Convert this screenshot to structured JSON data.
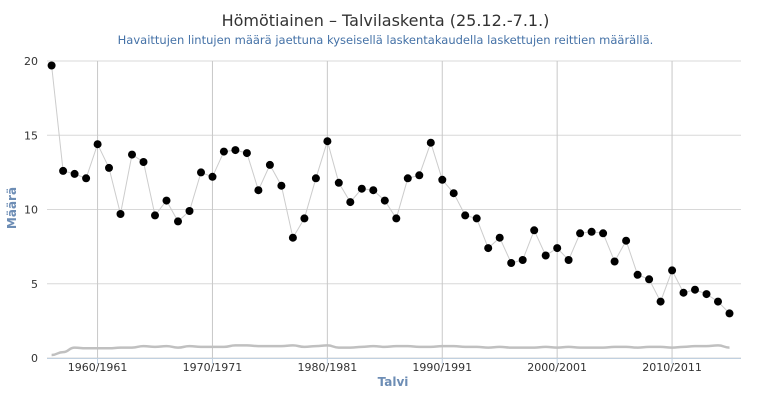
{
  "chart_data": {
    "type": "line",
    "title": "Hömötiainen – Talvilaskenta (25.12.-7.1.)",
    "subtitle": "Havaittujen lintujen määrä jaettuna kyseisellä laskentakaudella laskettujen reittien määrällä.",
    "xlabel": "Talvi",
    "ylabel": "Määrä",
    "ylim": [
      0,
      20
    ],
    "xlim": [
      1955.6,
      2016.0
    ],
    "y_ticks": [
      "0",
      "5",
      "10",
      "15",
      "20"
    ],
    "x_ticks": [
      {
        "x": 1960,
        "label": "1960/1961"
      },
      {
        "x": 1970,
        "label": "1970/1971"
      },
      {
        "x": 1980,
        "label": "1980/1981"
      },
      {
        "x": 1990,
        "label": "1990/1991"
      },
      {
        "x": 2000,
        "label": "2000/2001"
      },
      {
        "x": 2010,
        "label": "2010/2011"
      }
    ],
    "grid": true,
    "series": [
      {
        "name": "",
        "color": "#000000",
        "line_color": "#cccccc",
        "x": [
          1956,
          1957,
          1958,
          1959,
          1960,
          1961,
          1962,
          1963,
          1964,
          1965,
          1966,
          1967,
          1968,
          1969,
          1970,
          1971,
          1972,
          1973,
          1974,
          1975,
          1976,
          1977,
          1978,
          1979,
          1980,
          1981,
          1982,
          1983,
          1984,
          1985,
          1986,
          1987,
          1988,
          1989,
          1990,
          1991,
          1992,
          1993,
          1994,
          1995,
          1996,
          1997,
          1998,
          1999,
          2000,
          2001,
          2002,
          2003,
          2004,
          2005,
          2006,
          2007,
          2008,
          2009,
          2010,
          2011,
          2012,
          2013,
          2014,
          2015
        ],
        "values": [
          19.7,
          12.6,
          12.4,
          12.1,
          14.4,
          12.8,
          9.7,
          13.7,
          13.2,
          9.6,
          10.6,
          9.2,
          9.9,
          12.5,
          12.2,
          13.9,
          14.0,
          13.8,
          11.3,
          13.0,
          11.6,
          8.1,
          9.4,
          12.1,
          14.6,
          11.8,
          10.5,
          11.4,
          11.3,
          10.6,
          9.4,
          12.1,
          12.3,
          14.5,
          12.0,
          11.1,
          9.6,
          9.4,
          7.4,
          8.1,
          6.4,
          6.6,
          8.6,
          6.9,
          7.4,
          6.6,
          8.4,
          8.5,
          8.4,
          6.5,
          7.9,
          5.6,
          5.3,
          3.8,
          5.9,
          4.4,
          4.6,
          4.3,
          3.8,
          3.0
        ]
      },
      {
        "name": "",
        "color": "#c0c0c0",
        "x": [
          1956,
          1957,
          1958,
          1959,
          1960,
          1961,
          1962,
          1963,
          1964,
          1965,
          1966,
          1967,
          1968,
          1969,
          1970,
          1971,
          1972,
          1973,
          1974,
          1975,
          1976,
          1977,
          1978,
          1979,
          1980,
          1981,
          1982,
          1983,
          1984,
          1985,
          1986,
          1987,
          1988,
          1989,
          1990,
          1991,
          1992,
          1993,
          1994,
          1995,
          1996,
          1997,
          1998,
          1999,
          2000,
          2001,
          2002,
          2003,
          2004,
          2005,
          2006,
          2007,
          2008,
          2009,
          2010,
          2011,
          2012,
          2013,
          2014,
          2015
        ],
        "values": [
          0.2,
          0.4,
          0.7,
          0.65,
          0.65,
          0.65,
          0.7,
          0.7,
          0.8,
          0.75,
          0.8,
          0.7,
          0.8,
          0.75,
          0.75,
          0.75,
          0.85,
          0.85,
          0.8,
          0.8,
          0.8,
          0.85,
          0.75,
          0.8,
          0.85,
          0.7,
          0.7,
          0.75,
          0.8,
          0.75,
          0.8,
          0.8,
          0.75,
          0.75,
          0.8,
          0.8,
          0.75,
          0.75,
          0.7,
          0.75,
          0.7,
          0.7,
          0.7,
          0.75,
          0.7,
          0.75,
          0.7,
          0.7,
          0.7,
          0.75,
          0.75,
          0.7,
          0.75,
          0.75,
          0.7,
          0.75,
          0.8,
          0.8,
          0.85,
          0.7
        ]
      }
    ]
  }
}
